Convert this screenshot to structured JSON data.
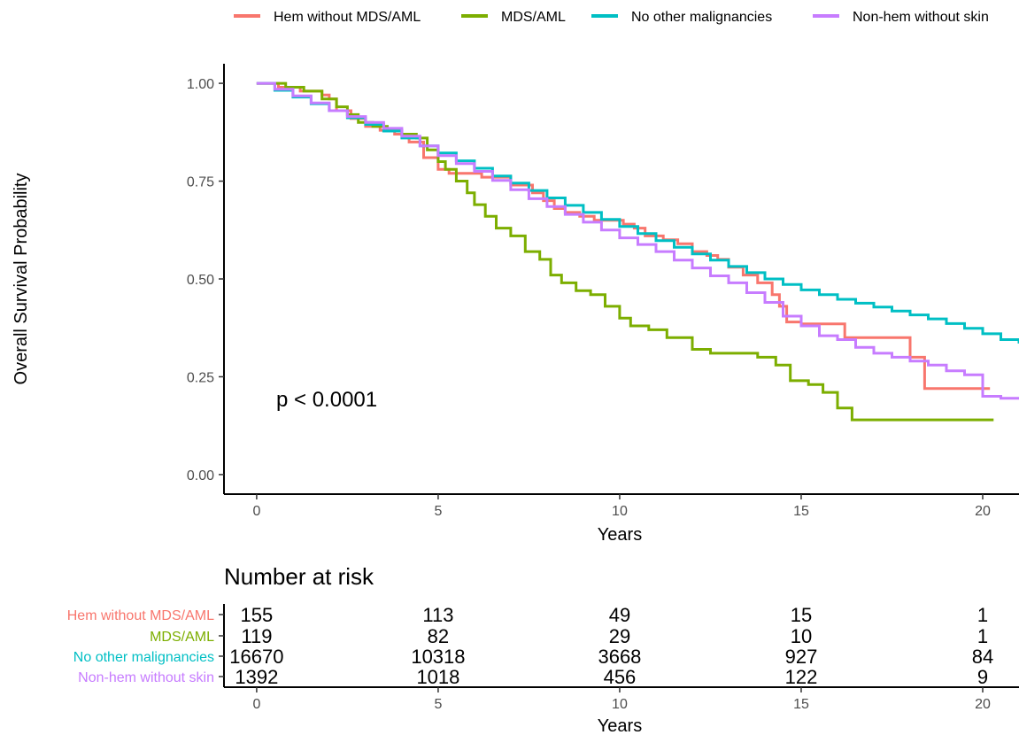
{
  "chart_data": {
    "type": "line",
    "subtype": "kaplan-meier-step",
    "ylabel": "Overall Survival Probability",
    "xlabel": "Years",
    "xlim": [
      -0.9,
      21
    ],
    "ylim": [
      -0.05,
      1.05
    ],
    "x_ticks": [
      0,
      5,
      10,
      15,
      20
    ],
    "y_ticks": [
      0.0,
      0.25,
      0.5,
      0.75,
      1.0
    ],
    "y_tick_labels": [
      "0.00",
      "0.25",
      "0.50",
      "0.75",
      "1.00"
    ],
    "grid": false,
    "legend_position": "top",
    "annotation": "p < 0.0001",
    "series": [
      {
        "name": "Hem without MDS/AML",
        "color": "#F8766D",
        "x": [
          0,
          0.6,
          1.2,
          1.8,
          2.0,
          2.2,
          2.6,
          3.0,
          3.4,
          3.8,
          4.2,
          4.6,
          5.0,
          5.3,
          5.6,
          6.2,
          7.0,
          7.6,
          7.9,
          8.2,
          8.5,
          8.9,
          9.3,
          9.7,
          10.1,
          10.4,
          10.7,
          11.2,
          11.6,
          12.0,
          12.4,
          12.7,
          13.0,
          13.4,
          13.8,
          14.2,
          14.4,
          14.6,
          15.0,
          15.8,
          16.2,
          17.0,
          17.7,
          18.0,
          18.4,
          19.0,
          19.7,
          20.2
        ],
        "y": [
          1.0,
          0.99,
          0.98,
          0.97,
          0.96,
          0.93,
          0.91,
          0.89,
          0.88,
          0.87,
          0.85,
          0.81,
          0.78,
          0.77,
          0.77,
          0.76,
          0.74,
          0.72,
          0.7,
          0.68,
          0.67,
          0.66,
          0.65,
          0.65,
          0.64,
          0.63,
          0.61,
          0.6,
          0.59,
          0.57,
          0.56,
          0.55,
          0.53,
          0.51,
          0.49,
          0.46,
          0.43,
          0.39,
          0.385,
          0.385,
          0.35,
          0.35,
          0.35,
          0.3,
          0.22,
          0.22,
          0.22,
          0.22
        ]
      },
      {
        "name": "MDS/AML",
        "color": "#7CAE00",
        "x": [
          0,
          0.8,
          1.3,
          1.8,
          2.2,
          2.5,
          2.8,
          3.2,
          3.6,
          4.0,
          4.4,
          4.7,
          5.0,
          5.2,
          5.5,
          5.8,
          6.0,
          6.3,
          6.6,
          7.0,
          7.4,
          7.8,
          8.1,
          8.4,
          8.8,
          9.2,
          9.6,
          10.0,
          10.3,
          10.8,
          11.3,
          12.0,
          12.5,
          13.0,
          13.8,
          14.3,
          14.7,
          15.2,
          15.6,
          16.0,
          16.4,
          17.0,
          18.0,
          19.0,
          20.3
        ],
        "y": [
          1.0,
          0.99,
          0.98,
          0.96,
          0.94,
          0.92,
          0.9,
          0.89,
          0.88,
          0.87,
          0.86,
          0.83,
          0.8,
          0.78,
          0.75,
          0.72,
          0.69,
          0.66,
          0.63,
          0.61,
          0.57,
          0.55,
          0.51,
          0.49,
          0.47,
          0.46,
          0.43,
          0.4,
          0.38,
          0.37,
          0.35,
          0.32,
          0.31,
          0.31,
          0.3,
          0.28,
          0.24,
          0.23,
          0.21,
          0.17,
          0.14,
          0.14,
          0.14,
          0.14,
          0.14
        ]
      },
      {
        "name": "No other malignancies",
        "color": "#00BFC4",
        "x": [
          0,
          0.5,
          1,
          1.5,
          2,
          2.5,
          3,
          3.5,
          4,
          4.5,
          5,
          5.5,
          6,
          6.5,
          7,
          7.5,
          8,
          8.5,
          9,
          9.5,
          10,
          10.5,
          11,
          11.5,
          12,
          12.5,
          13,
          13.5,
          14,
          14.5,
          15,
          15.5,
          16,
          16.5,
          17,
          17.5,
          18,
          18.5,
          19,
          19.5,
          20,
          20.5,
          21
        ],
        "y": [
          1.0,
          0.982,
          0.965,
          0.948,
          0.93,
          0.912,
          0.895,
          0.878,
          0.86,
          0.84,
          0.822,
          0.802,
          0.783,
          0.763,
          0.745,
          0.726,
          0.707,
          0.688,
          0.67,
          0.652,
          0.634,
          0.616,
          0.598,
          0.581,
          0.564,
          0.548,
          0.532,
          0.516,
          0.5,
          0.486,
          0.472,
          0.46,
          0.448,
          0.438,
          0.428,
          0.418,
          0.408,
          0.398,
          0.386,
          0.374,
          0.36,
          0.345,
          0.335
        ]
      },
      {
        "name": "Non-hem without skin",
        "color": "#C77CFF",
        "x": [
          0,
          0.5,
          1,
          1.5,
          2,
          2.5,
          3,
          3.5,
          4,
          4.5,
          5,
          5.5,
          6,
          6.5,
          7,
          7.5,
          8,
          8.5,
          9,
          9.5,
          10,
          10.5,
          11,
          11.5,
          12,
          12.5,
          13,
          13.5,
          14,
          14.5,
          15,
          15.5,
          16,
          16.5,
          17,
          17.5,
          18,
          18.5,
          19,
          19.5,
          20,
          20.5,
          21
        ],
        "y": [
          1.0,
          0.985,
          0.968,
          0.95,
          0.93,
          0.915,
          0.9,
          0.885,
          0.865,
          0.84,
          0.815,
          0.795,
          0.775,
          0.752,
          0.728,
          0.705,
          0.685,
          0.665,
          0.645,
          0.625,
          0.605,
          0.588,
          0.57,
          0.548,
          0.528,
          0.508,
          0.49,
          0.465,
          0.44,
          0.405,
          0.38,
          0.355,
          0.345,
          0.325,
          0.31,
          0.3,
          0.29,
          0.28,
          0.265,
          0.255,
          0.2,
          0.195,
          0.195
        ]
      }
    ],
    "risk_table": {
      "title": "Number at risk",
      "xlabel": "Years",
      "times": [
        0,
        5,
        10,
        15,
        20
      ],
      "rows": [
        {
          "name": "Hem without MDS/AML",
          "color": "#F8766D",
          "counts": [
            "155",
            "113",
            "49",
            "15",
            "1"
          ]
        },
        {
          "name": "MDS/AML",
          "color": "#7CAE00",
          "counts": [
            "119",
            "82",
            "29",
            "10",
            "1"
          ]
        },
        {
          "name": "No other malignancies",
          "color": "#00BFC4",
          "counts": [
            "16670",
            "10318",
            "3668",
            "927",
            "84"
          ]
        },
        {
          "name": "Non-hem without skin",
          "color": "#C77CFF",
          "counts": [
            "1392",
            "1018",
            "456",
            "122",
            "9"
          ]
        }
      ]
    }
  }
}
